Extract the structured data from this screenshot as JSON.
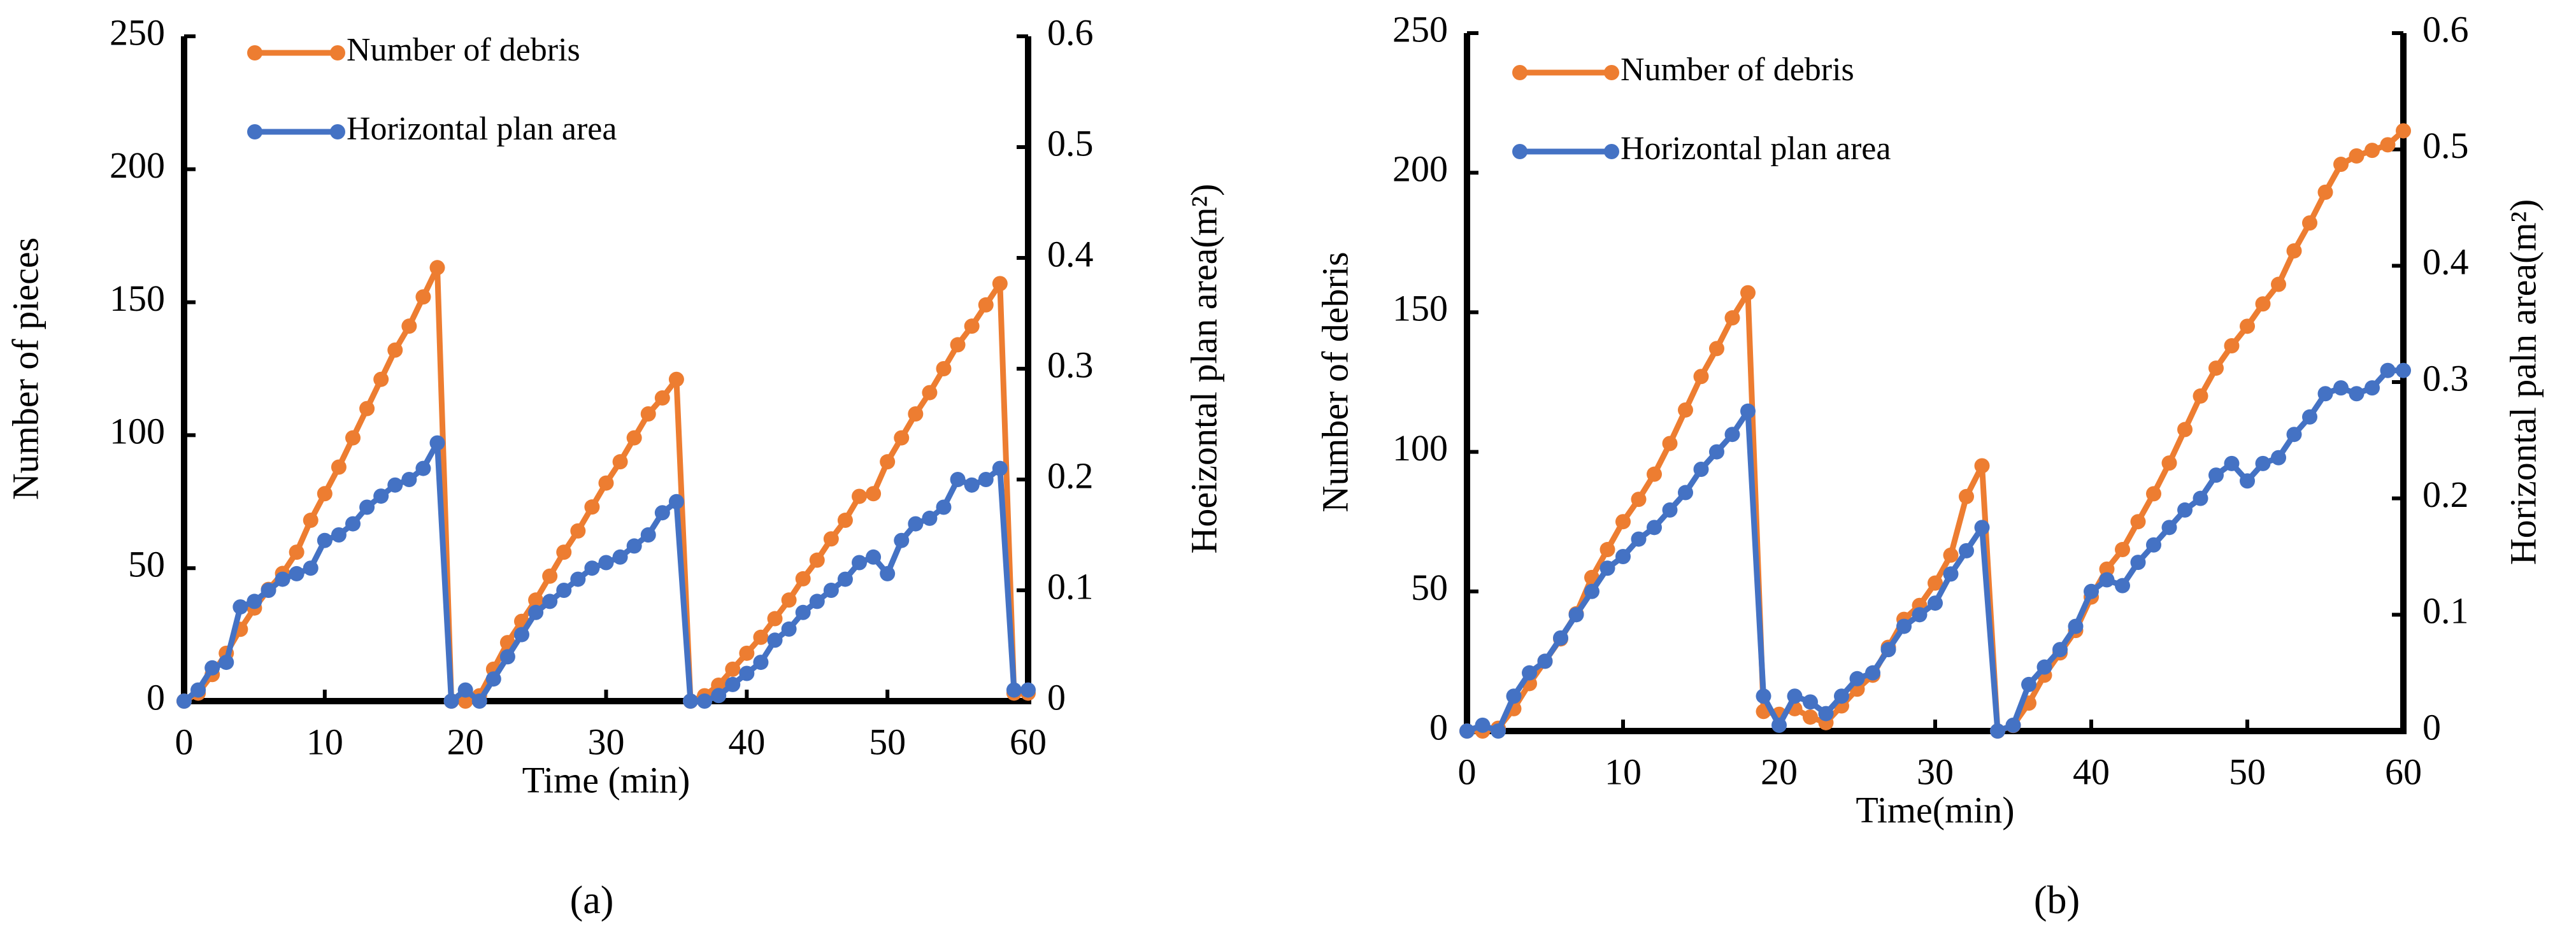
{
  "chart_data": [
    {
      "type": "line",
      "caption": "(a)",
      "xlabel": "Time (min)",
      "ylabel": "Number of pieces",
      "y2label": "Hoeizontal plan area(m²)",
      "x": [
        0,
        1,
        2,
        3,
        4,
        5,
        6,
        7,
        8,
        9,
        10,
        11,
        12,
        13,
        14,
        15,
        16,
        17,
        18,
        19,
        20,
        21,
        22,
        23,
        24,
        25,
        26,
        27,
        28,
        29,
        30,
        31,
        32,
        33,
        34,
        35,
        36,
        37,
        38,
        39,
        40,
        41,
        42,
        43,
        44,
        45,
        46,
        47,
        48,
        49,
        50,
        51,
        52,
        53,
        54,
        55,
        56,
        57,
        58,
        59,
        60
      ],
      "xlim": [
        0,
        60
      ],
      "xticks": [
        0,
        10,
        20,
        30,
        40,
        50,
        60
      ],
      "ylim": [
        0,
        250
      ],
      "yticks": [
        0,
        50,
        100,
        150,
        200,
        250
      ],
      "y2lim": [
        0,
        0.6
      ],
      "y2ticks": [
        0,
        0.1,
        0.2,
        0.3,
        0.4,
        0.5,
        0.6
      ],
      "legend": "upper left",
      "series": [
        {
          "name": "Number of debris",
          "color": "#ed7d31",
          "values": [
            0,
            3,
            10,
            18,
            27,
            35,
            42,
            48,
            56,
            68,
            78,
            88,
            99,
            110,
            121,
            132,
            141,
            152,
            163,
            0,
            0,
            2,
            12,
            22,
            30,
            38,
            47,
            56,
            64,
            73,
            82,
            90,
            99,
            108,
            114,
            121,
            0,
            2,
            6,
            12,
            18,
            24,
            31,
            38,
            46,
            53,
            61,
            68,
            77,
            78,
            90,
            99,
            108,
            116,
            125,
            134,
            141,
            149,
            157,
            3,
            3
          ]
        },
        {
          "name": "Horizontal plan area",
          "color": "#4472c4",
          "axis": "y2",
          "values": [
            0,
            0.01,
            0.03,
            0.035,
            0.085,
            0.09,
            0.1,
            0.11,
            0.115,
            0.12,
            0.145,
            0.15,
            0.16,
            0.175,
            0.185,
            0.195,
            0.2,
            0.21,
            0.233,
            0,
            0.01,
            0,
            0.02,
            0.04,
            0.06,
            0.08,
            0.09,
            0.1,
            0.11,
            0.12,
            0.125,
            0.13,
            0.14,
            0.15,
            0.17,
            0.18,
            0,
            0,
            0.005,
            0.015,
            0.025,
            0.035,
            0.055,
            0.065,
            0.08,
            0.09,
            0.1,
            0.11,
            0.125,
            0.13,
            0.115,
            0.145,
            0.16,
            0.165,
            0.175,
            0.2,
            0.195,
            0.2,
            0.21,
            0.01,
            0.01
          ]
        }
      ]
    },
    {
      "type": "line",
      "caption": "(b)",
      "xlabel": "Time(min)",
      "ylabel": "Number of debris",
      "y2label": "Horizontal paln area(m²)",
      "x": [
        0,
        1,
        2,
        3,
        4,
        5,
        6,
        7,
        8,
        9,
        10,
        11,
        12,
        13,
        14,
        15,
        16,
        17,
        18,
        19,
        20,
        21,
        22,
        23,
        24,
        25,
        26,
        27,
        28,
        29,
        30,
        31,
        32,
        33,
        34,
        35,
        36,
        37,
        38,
        39,
        40,
        41,
        42,
        43,
        44,
        45,
        46,
        47,
        48,
        49,
        50,
        51,
        52,
        53,
        54,
        55,
        56,
        57,
        58,
        59,
        60
      ],
      "xlim": [
        0,
        60
      ],
      "xticks": [
        0,
        10,
        20,
        30,
        40,
        50,
        60
      ],
      "ylim": [
        0,
        250
      ],
      "yticks": [
        0,
        50,
        100,
        150,
        200,
        250
      ],
      "y2lim": [
        0,
        0.6
      ],
      "y2ticks": [
        0,
        0.1,
        0.2,
        0.3,
        0.4,
        0.5,
        0.6
      ],
      "legend": "upper left",
      "series": [
        {
          "name": "Number of debris",
          "color": "#ed7d31",
          "values": [
            0,
            0,
            1,
            8,
            17,
            25,
            33,
            42,
            55,
            65,
            75,
            83,
            92,
            103,
            115,
            127,
            137,
            148,
            157,
            7,
            6,
            8,
            5,
            3,
            9,
            15,
            20,
            30,
            40,
            45,
            53,
            63,
            84,
            95,
            0,
            2,
            10,
            20,
            28,
            36,
            48,
            58,
            65,
            75,
            85,
            96,
            108,
            120,
            130,
            138,
            145,
            153,
            160,
            172,
            182,
            193,
            203,
            206,
            208,
            210,
            215
          ]
        },
        {
          "name": "Horizontal plan area",
          "color": "#4472c4",
          "axis": "y2",
          "values": [
            0,
            0.005,
            0,
            0.03,
            0.05,
            0.06,
            0.08,
            0.1,
            0.12,
            0.14,
            0.15,
            0.165,
            0.175,
            0.19,
            0.205,
            0.225,
            0.24,
            0.255,
            0.275,
            0.03,
            0.005,
            0.03,
            0.025,
            0.015,
            0.03,
            0.045,
            0.05,
            0.07,
            0.09,
            0.1,
            0.11,
            0.135,
            0.155,
            0.175,
            0,
            0.005,
            0.04,
            0.055,
            0.07,
            0.09,
            0.12,
            0.13,
            0.125,
            0.145,
            0.16,
            0.175,
            0.19,
            0.2,
            0.22,
            0.23,
            0.215,
            0.23,
            0.235,
            0.255,
            0.27,
            0.29,
            0.295,
            0.29,
            0.295,
            0.31,
            0.31
          ]
        }
      ]
    }
  ]
}
